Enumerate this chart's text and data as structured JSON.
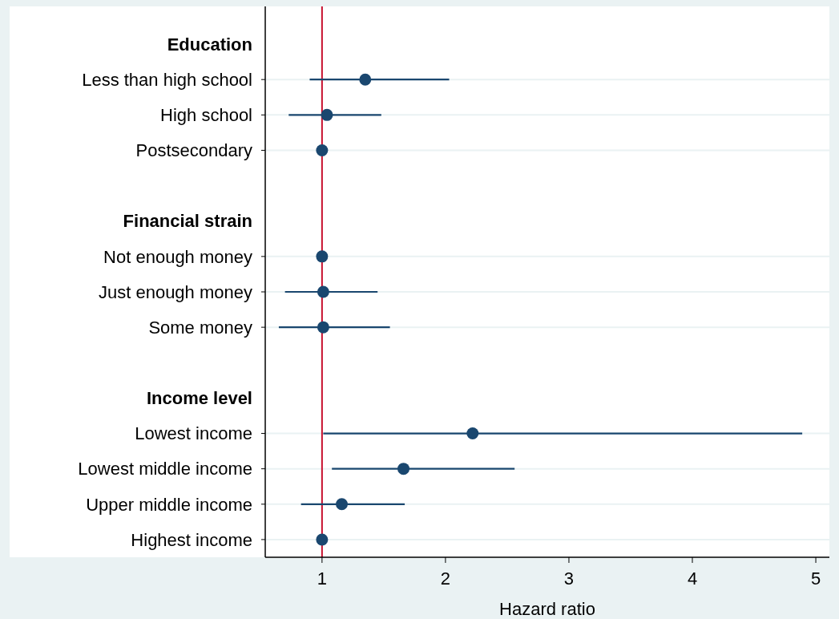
{
  "chart_data": {
    "type": "scatter",
    "orientation": "horizontal",
    "xlabel": "Hazard ratio",
    "categories": [
      "Education",
      "Less than high school",
      "High school",
      "Postsecondary",
      null,
      "Financial strain",
      "Not enough money",
      "Just enough money",
      "Some money",
      null,
      "Income level",
      "Lowest income",
      "Lowest middle income",
      "Upper middle income",
      "Highest income"
    ],
    "series": [
      {
        "color": "#1a476f",
        "values": [
          null,
          1.35,
          1.04,
          1,
          null,
          null,
          1,
          1.01,
          1.01,
          null,
          null,
          2.22,
          1.66,
          1.16,
          1
        ],
        "errors": [
          null,
          [
            0.9,
            2.03
          ],
          [
            0.73,
            1.48
          ],
          null,
          null,
          null,
          null,
          [
            0.7,
            1.45
          ],
          [
            0.65,
            1.55
          ],
          null,
          null,
          [
            1.01,
            4.89
          ],
          [
            1.08,
            2.56
          ],
          [
            0.83,
            1.67
          ],
          null
        ]
      }
    ],
    "xlim": [
      0.54,
      5.11
    ],
    "xticks": [
      1,
      2,
      3,
      4,
      5
    ],
    "grid": "y",
    "marker": "circle",
    "ref_lines": [
      {
        "axis": "x",
        "value": 1,
        "color": "#c8102e"
      }
    ]
  }
}
